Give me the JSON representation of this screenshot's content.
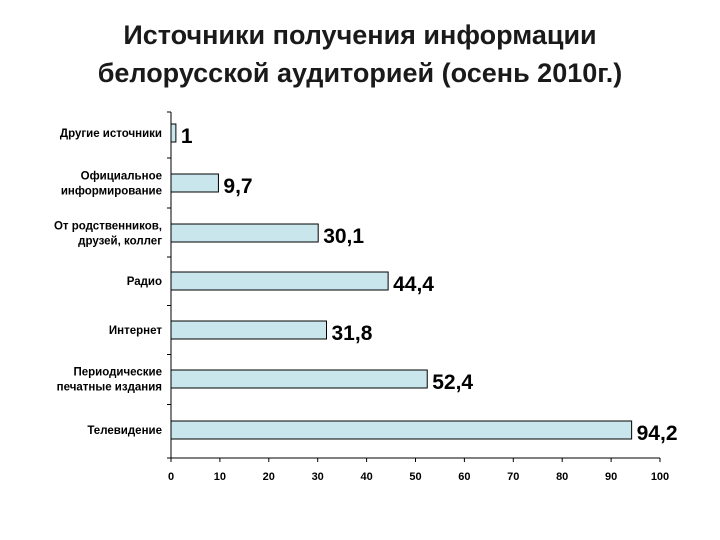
{
  "title_line1": "Источники получения информации",
  "title_line2": "белорусской аудиторией (осень 2010г.)",
  "chart_data": {
    "type": "bar",
    "orientation": "horizontal",
    "categories": [
      [
        "Другие источники"
      ],
      [
        "Официальное",
        "информирование"
      ],
      [
        "От родственников,",
        "друзей, коллег"
      ],
      [
        "Радио"
      ],
      [
        "Интернет"
      ],
      [
        "Периодические",
        "печатные издания"
      ],
      [
        "Телевидение"
      ]
    ],
    "values": [
      1,
      9.7,
      30.1,
      44.4,
      31.8,
      52.4,
      94.2
    ],
    "value_labels": [
      "1",
      "9,7",
      "30,1",
      "44,4",
      "31,8",
      "52,4",
      "94,2"
    ],
    "xlim": [
      0,
      100
    ],
    "xticks": [
      0,
      10,
      20,
      30,
      40,
      50,
      60,
      70,
      80,
      90,
      100
    ],
    "grid": false,
    "legend": "none",
    "colors": {
      "bar_fill": "#c9e6ec",
      "bar_stroke": "#000000"
    }
  }
}
